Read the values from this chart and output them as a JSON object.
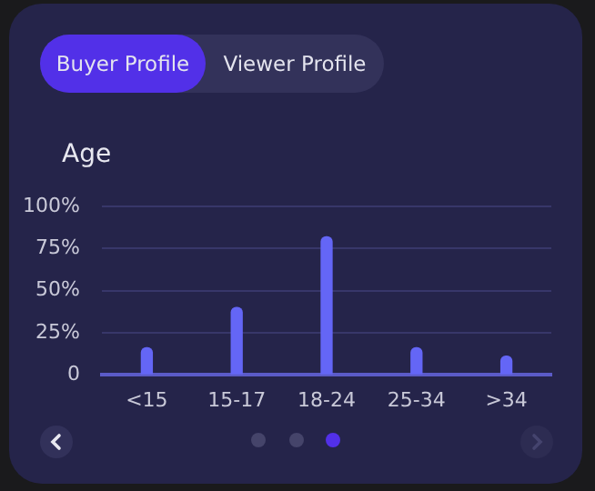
{
  "chart_data": {
    "type": "bar",
    "title": "Age",
    "annotations": [
      "Buyer Profile",
      "Viewer Profile"
    ],
    "categories": [
      "<15",
      "15-17",
      "18-24",
      "25-34",
      ">34"
    ],
    "values": [
      16,
      40,
      82,
      16,
      11
    ],
    "color": "#6466f6",
    "ylim": [
      0,
      100
    ],
    "yticks": [
      0,
      {
        "value": 25,
        "label": "25%"
      },
      {
        "value": 50,
        "label": "50%"
      },
      {
        "value": 75,
        "label": "75%"
      },
      {
        "value": 100,
        "label": "100%"
      }
    ],
    "grid": "y"
  }
}
